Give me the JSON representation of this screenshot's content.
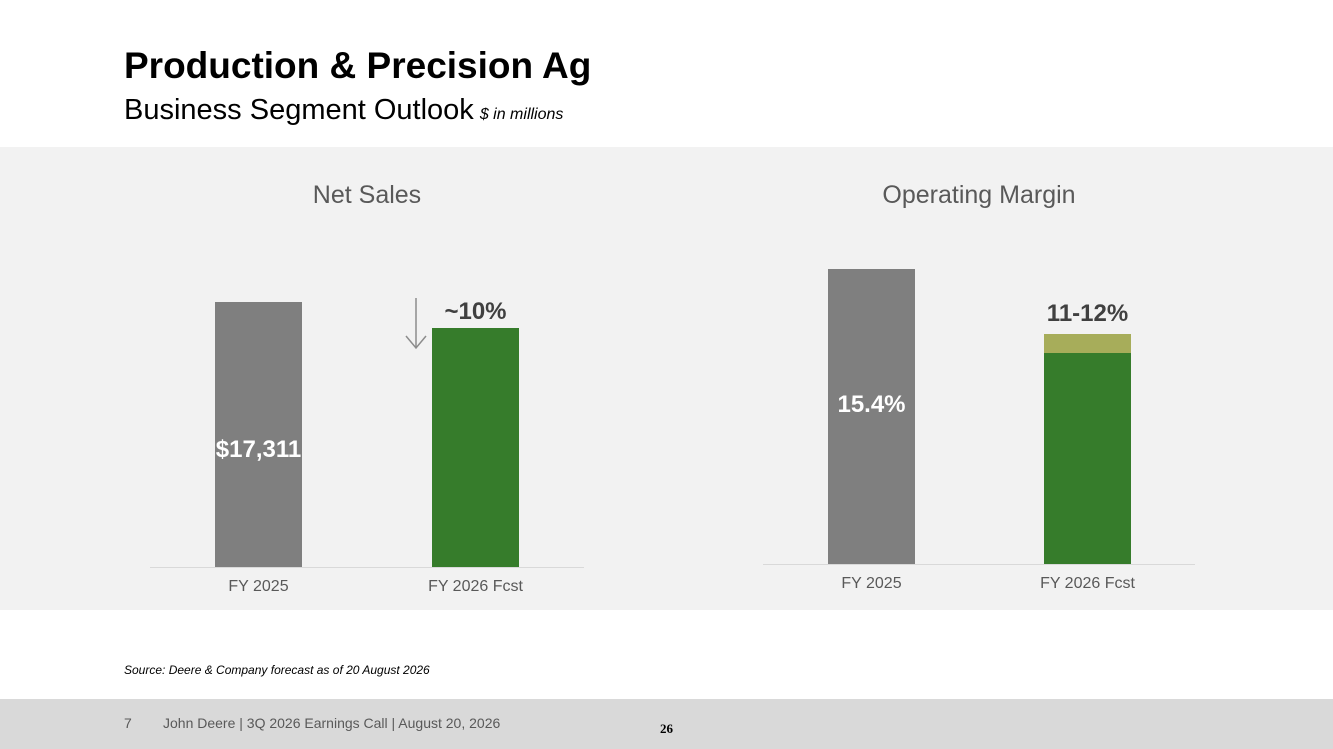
{
  "header": {
    "title": "Production & Precision Ag",
    "subtitle": "Business Segment Outlook",
    "units": "$ in millions"
  },
  "chart_data": [
    {
      "type": "bar",
      "title": "Net Sales",
      "categories": [
        "FY 2025",
        "FY 2026 Fcst"
      ],
      "values": [
        17311,
        15580
      ],
      "labels": [
        "$17,311",
        "~10%"
      ],
      "change_indicator": "down-arrow",
      "colors": [
        "#7f7f7f",
        "#367c2b"
      ]
    },
    {
      "type": "bar",
      "title": "Operating Margin",
      "categories": [
        "FY 2025",
        "FY 2026 Fcst"
      ],
      "values": [
        15.4,
        12
      ],
      "range_low": 11,
      "labels": [
        "15.4%",
        "11-12%"
      ],
      "colors": [
        "#7f7f7f",
        "#367c2b",
        "#a7ad5a"
      ]
    }
  ],
  "source": "Source: Deere & Company forecast as of 20 August 2026",
  "footer": {
    "slide_number": "7",
    "text": "John Deere | 3Q 2026 Earnings Call | August 20, 2026",
    "page": "26"
  }
}
